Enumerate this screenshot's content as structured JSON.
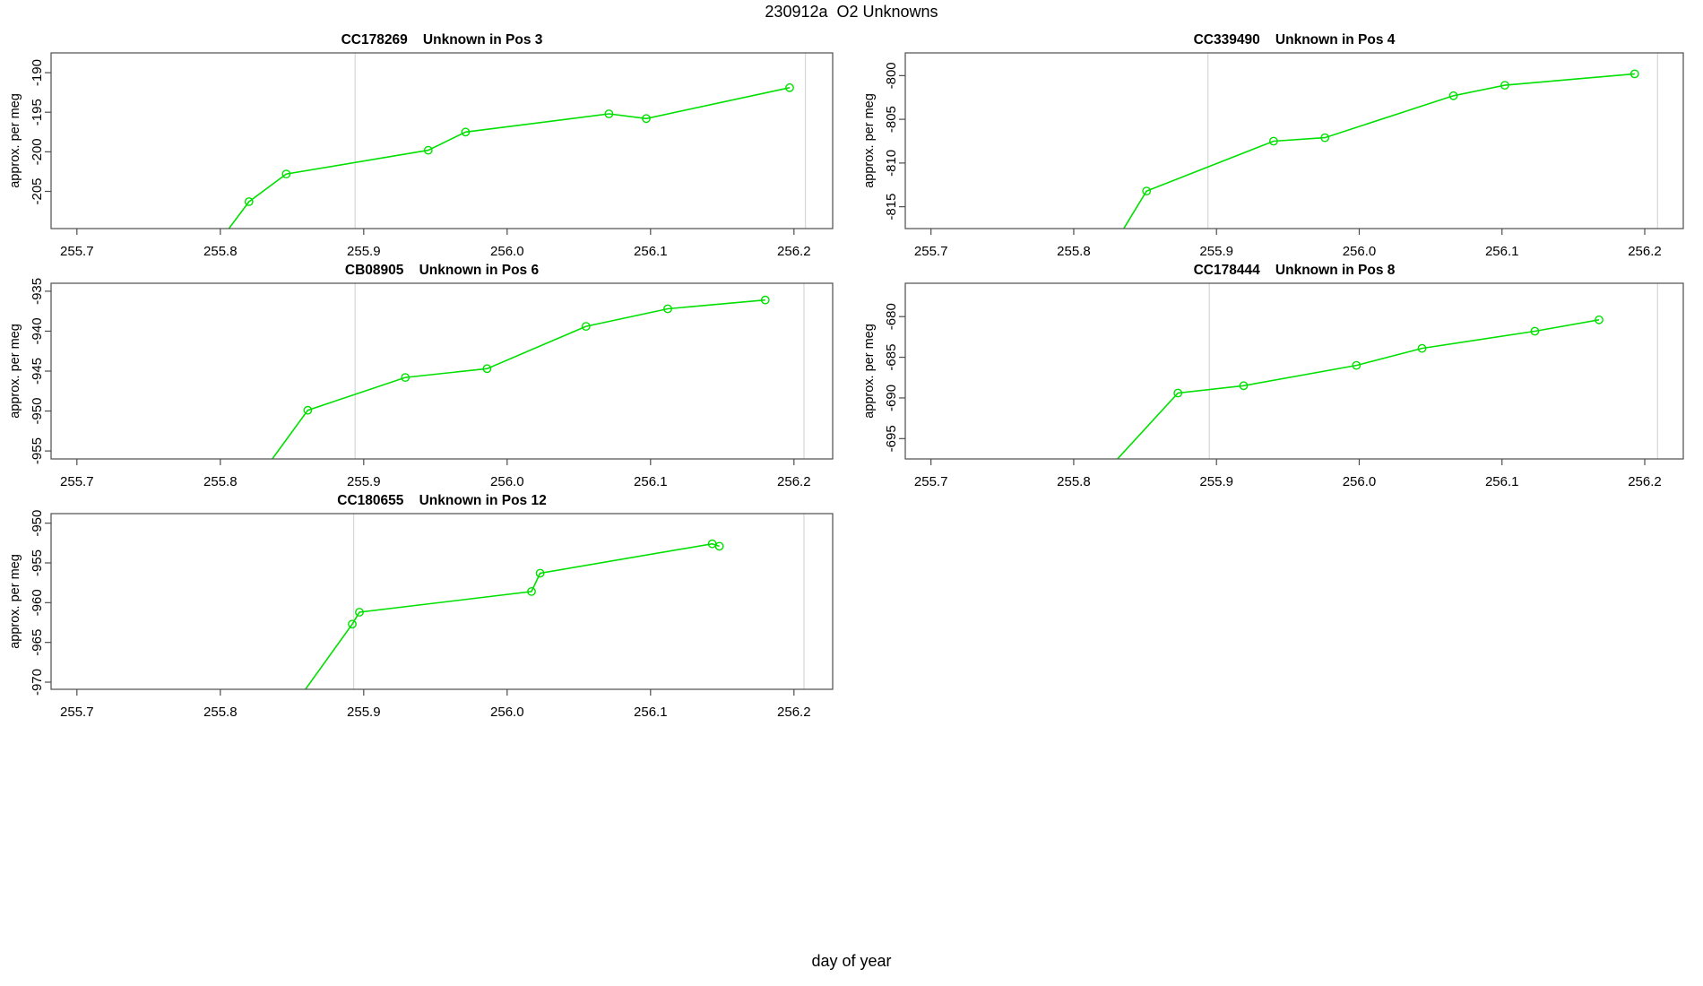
{
  "figure": {
    "title": "230912a  O2 Unknowns",
    "xlabel": "day of year",
    "ylabel": "approx. per meg"
  },
  "colors": {
    "series": "#00e000",
    "vline": "#d9d9d9",
    "axis": "#4d4d4d",
    "text": "#000000",
    "background": "#ffffff"
  },
  "chart_data": [
    {
      "type": "line",
      "sample_id": "CC178269",
      "position_label": "Unknown in Pos 3",
      "title": "CC178269    Unknown in Pos 3",
      "ylabel": "approx. per meg",
      "marker": "open-circle",
      "grid": false,
      "xlim": [
        255.682,
        256.227
      ],
      "ylim": [
        -209.7,
        -187.5
      ],
      "xtick_values": [
        255.7,
        255.8,
        255.9,
        256.0,
        256.1,
        256.2
      ],
      "xtick_labels": [
        "255.7",
        "255.8",
        "255.9",
        "256.0",
        "256.1",
        "256.2"
      ],
      "ytick_values": [
        -205,
        -200,
        -195,
        -190
      ],
      "ytick_labels": [
        "-205",
        "-200",
        "-195",
        "-190"
      ],
      "vlines": [
        255.894,
        256.208
      ],
      "lead_in": [
        255.78,
        -216.0
      ],
      "points": {
        "x": [
          255.82,
          255.846,
          255.945,
          255.971,
          256.071,
          256.097,
          256.197
        ],
        "y": [
          -206.3,
          -202.8,
          -199.8,
          -197.5,
          -195.2,
          -195.8,
          -191.9
        ]
      }
    },
    {
      "type": "line",
      "sample_id": "CC339490",
      "position_label": "Unknown in Pos 4",
      "title": "CC339490    Unknown in Pos 4",
      "ylabel": "approx. per meg",
      "marker": "open-circle",
      "grid": false,
      "xlim": [
        255.682,
        256.227
      ],
      "ylim": [
        -817.5,
        -797.4
      ],
      "xtick_values": [
        255.7,
        255.8,
        255.9,
        256.0,
        256.1,
        256.2
      ],
      "xtick_labels": [
        "255.7",
        "255.8",
        "255.9",
        "256.0",
        "256.1",
        "256.2"
      ],
      "ytick_values": [
        -815,
        -810,
        -805,
        -800
      ],
      "ytick_labels": [
        "-815",
        "-810",
        "-805",
        "-800"
      ],
      "vlines": [
        255.894,
        256.209
      ],
      "lead_in": [
        255.822,
        -821.0
      ],
      "points": {
        "x": [
          255.851,
          255.94,
          255.976,
          256.066,
          256.102,
          256.193
        ],
        "y": [
          -813.2,
          -807.5,
          -807.1,
          -802.3,
          -801.1,
          -799.8
        ]
      }
    },
    {
      "type": "line",
      "sample_id": "CB08905",
      "position_label": "Unknown in Pos 6",
      "title": "CB08905    Unknown in Pos 6",
      "ylabel": "approx. per meg",
      "marker": "open-circle",
      "grid": false,
      "xlim": [
        255.682,
        256.227
      ],
      "ylim": [
        -956.0,
        -934.0
      ],
      "xtick_values": [
        255.7,
        255.8,
        255.9,
        256.0,
        256.1,
        256.2
      ],
      "xtick_labels": [
        "255.7",
        "255.8",
        "255.9",
        "256.0",
        "256.1",
        "256.2"
      ],
      "ytick_values": [
        -955,
        -950,
        -945,
        -940,
        -935
      ],
      "ytick_labels": [
        "-955",
        "-950",
        "-945",
        "-940",
        "-935"
      ],
      "vlines": [
        255.894,
        256.207
      ],
      "lead_in": [
        255.82,
        -960.0
      ],
      "points": {
        "x": [
          255.861,
          255.929,
          255.986,
          256.055,
          256.112,
          256.18
        ],
        "y": [
          -949.9,
          -945.8,
          -944.7,
          -939.4,
          -937.2,
          -936.1
        ]
      }
    },
    {
      "type": "line",
      "sample_id": "CC178444",
      "position_label": "Unknown in Pos 8",
      "title": "CC178444    Unknown in Pos 8",
      "ylabel": "approx. per meg",
      "marker": "open-circle",
      "grid": false,
      "xlim": [
        255.682,
        256.227
      ],
      "ylim": [
        -697.5,
        -675.9
      ],
      "xtick_values": [
        255.7,
        255.8,
        255.9,
        256.0,
        256.1,
        256.2
      ],
      "xtick_labels": [
        "255.7",
        "255.8",
        "255.9",
        "256.0",
        "256.1",
        "256.2"
      ],
      "ytick_values": [
        -695,
        -690,
        -685,
        -680
      ],
      "ytick_labels": [
        "-695",
        "-690",
        "-685",
        "-680"
      ],
      "vlines": [
        255.895,
        256.209
      ],
      "lead_in": [
        255.815,
        -700.5
      ],
      "points": {
        "x": [
          255.873,
          255.919,
          255.998,
          256.044,
          256.123,
          256.168
        ],
        "y": [
          -689.4,
          -688.5,
          -686.0,
          -683.9,
          -681.8,
          -680.4
        ]
      }
    },
    {
      "type": "line",
      "sample_id": "CC180655",
      "position_label": "Unknown in Pos 12",
      "title": "CC180655    Unknown in Pos 12",
      "ylabel": "approx. per meg",
      "marker": "open-circle",
      "grid": false,
      "xlim": [
        255.682,
        256.227
      ],
      "ylim": [
        -970.9,
        -948.8
      ],
      "xtick_values": [
        255.7,
        255.8,
        255.9,
        256.0,
        256.1,
        256.2
      ],
      "xtick_labels": [
        "255.7",
        "255.8",
        "255.9",
        "256.0",
        "256.1",
        "256.2"
      ],
      "ytick_values": [
        -970,
        -965,
        -960,
        -955,
        -950
      ],
      "ytick_labels": [
        "-970",
        "-965",
        "-960",
        "-955",
        "-950"
      ],
      "vlines": [
        255.893,
        256.207
      ],
      "lead_in": [
        255.843,
        -975.0
      ],
      "points": {
        "x": [
          255.892,
          255.897,
          256.017,
          256.023,
          256.143,
          256.148
        ],
        "y": [
          -962.7,
          -961.2,
          -958.6,
          -956.3,
          -952.6,
          -952.9
        ]
      }
    }
  ]
}
